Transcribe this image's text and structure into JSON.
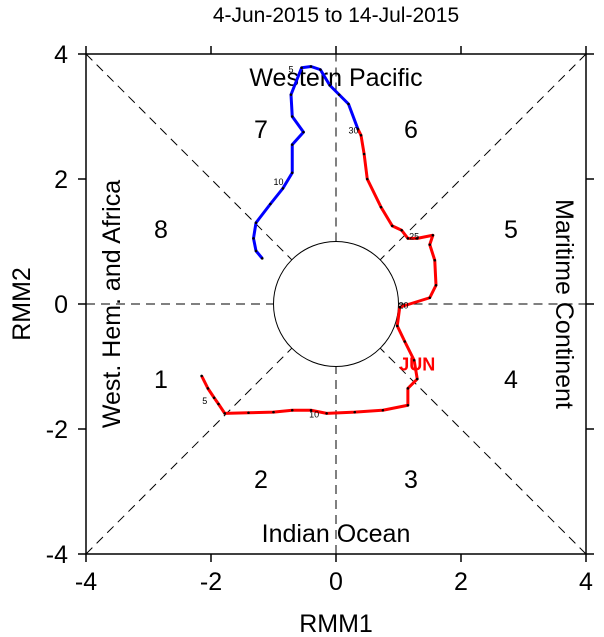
{
  "chart_data": {
    "type": "line",
    "title": "4-Jun-2015 to 14-Jul-2015",
    "xlabel": "RMM1",
    "ylabel": "RMM2",
    "xlim": [
      -4,
      4
    ],
    "ylim": [
      -4,
      4
    ],
    "x_ticks": [
      -4,
      -2,
      0,
      2,
      4
    ],
    "y_ticks": [
      -4,
      -2,
      0,
      2,
      4
    ],
    "x_tick_labels": [
      "-4",
      "-2",
      "0",
      "2",
      "4"
    ],
    "y_tick_labels": [
      "-4",
      "-2",
      "0",
      "2",
      "4"
    ],
    "unit_circle_radius": 1,
    "phase_numbers": [
      {
        "label": "1",
        "x": -2.8,
        "y": -1.2
      },
      {
        "label": "2",
        "x": -1.2,
        "y": -2.8
      },
      {
        "label": "3",
        "x": 1.2,
        "y": -2.8
      },
      {
        "label": "4",
        "x": 2.8,
        "y": -1.2
      },
      {
        "label": "5",
        "x": 2.8,
        "y": 1.2
      },
      {
        "label": "6",
        "x": 1.2,
        "y": 2.8
      },
      {
        "label": "7",
        "x": -1.2,
        "y": 2.8
      },
      {
        "label": "8",
        "x": -2.8,
        "y": 1.2
      }
    ],
    "region_labels": {
      "top": "Western Pacific",
      "bottom": "Indian Ocean",
      "left": "West. Hem. and Africa",
      "right": "Maritime Continent"
    },
    "month_labels": [
      {
        "text": "JUN",
        "x": 1.3,
        "y": -0.95,
        "color": "#ff0000"
      }
    ],
    "series": [
      {
        "color": "#ff0000",
        "points": [
          [
            -2.15,
            -1.15
          ],
          [
            -2.05,
            -1.35
          ],
          [
            -1.95,
            -1.5
          ],
          [
            -1.88,
            -1.6
          ],
          [
            -1.78,
            -1.75
          ],
          [
            -1.4,
            -1.74
          ],
          [
            -1.0,
            -1.73
          ],
          [
            -0.7,
            -1.7
          ],
          [
            -0.4,
            -1.7
          ],
          [
            -0.15,
            -1.75
          ],
          [
            0.3,
            -1.73
          ],
          [
            0.75,
            -1.7
          ],
          [
            1.15,
            -1.62
          ],
          [
            1.15,
            -1.35
          ],
          [
            1.3,
            -1.2
          ],
          [
            1.25,
            -0.9
          ],
          [
            1.1,
            -0.6
          ],
          [
            0.98,
            -0.35
          ],
          [
            1.02,
            -0.05
          ],
          [
            1.5,
            0.1
          ],
          [
            1.6,
            0.3
          ],
          [
            1.58,
            0.7
          ],
          [
            1.5,
            0.95
          ],
          [
            1.55,
            1.1
          ],
          [
            1.3,
            1.05
          ],
          [
            1.15,
            1.05
          ],
          [
            1.05,
            1.18
          ],
          [
            0.9,
            1.25
          ],
          [
            0.72,
            1.55
          ],
          [
            0.5,
            2.0
          ],
          [
            0.45,
            2.4
          ],
          [
            0.4,
            2.7
          ],
          [
            0.35,
            2.8
          ]
        ],
        "day_labels": [
          {
            "text": "5",
            "x": -2.1,
            "y": -1.55
          },
          {
            "text": "10",
            "x": -0.35,
            "y": -1.77
          },
          {
            "text": "20",
            "x": 1.08,
            "y": -0.02
          },
          {
            "text": "25",
            "x": 1.25,
            "y": 1.08
          },
          {
            "text": "30",
            "x": 0.28,
            "y": 2.78
          }
        ]
      },
      {
        "color": "#0000ff",
        "points": [
          [
            0.35,
            2.8
          ],
          [
            0.2,
            3.2
          ],
          [
            0.05,
            3.35
          ],
          [
            -0.1,
            3.5
          ],
          [
            -0.25,
            3.75
          ],
          [
            -0.4,
            3.8
          ],
          [
            -0.55,
            3.78
          ],
          [
            -0.72,
            3.35
          ],
          [
            -0.7,
            3.0
          ],
          [
            -0.52,
            2.75
          ],
          [
            -0.7,
            2.55
          ],
          [
            -0.7,
            2.1
          ],
          [
            -0.85,
            1.85
          ],
          [
            -1.05,
            1.6
          ],
          [
            -1.28,
            1.3
          ],
          [
            -1.32,
            1.05
          ],
          [
            -1.28,
            0.85
          ],
          [
            -1.18,
            0.73
          ]
        ],
        "day_labels": [
          {
            "text": "5",
            "x": -0.72,
            "y": 3.75
          },
          {
            "text": "10",
            "x": -0.92,
            "y": 1.95
          }
        ]
      }
    ]
  }
}
